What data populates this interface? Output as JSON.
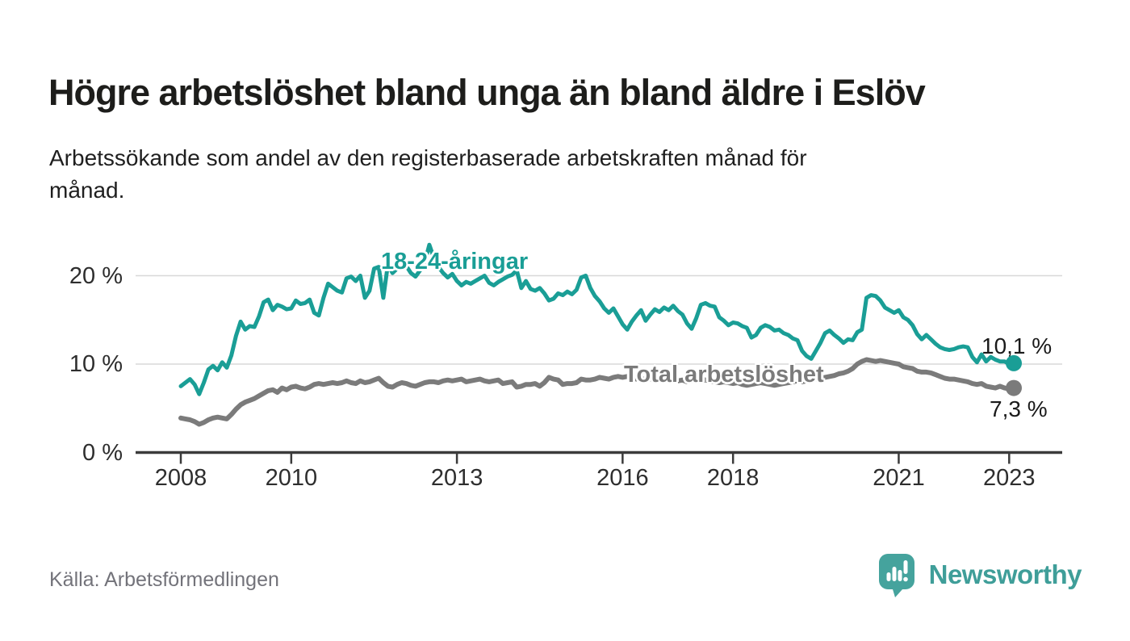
{
  "header": {
    "title": "Högre arbetslöshet bland unga än bland äldre i Eslöv",
    "subtitle": "Arbetssökande som andel av den registerbaserade arbetskraften månad för\nmånad."
  },
  "footer": {
    "source": "Källa: Arbetsförmedlingen",
    "brand": "Newsworthy"
  },
  "colors": {
    "young": "#1a9e96",
    "total": "#7b7b7b",
    "grid": "#d8d8d8",
    "axis": "#3b3b3b",
    "axis_label": "#2e2e2e",
    "value_label": "#1a1a1a",
    "brand_teal": "#45a39d"
  },
  "chart_data": {
    "type": "line",
    "title": "Högre arbetslöshet bland unga än bland äldre i Eslöv",
    "subtitle": "Arbetssökande som andel av den registerbaserade arbetskraften månad för månad.",
    "unit": "%",
    "x_start": "2008-01",
    "x_end": "2023-02",
    "x_frequency": "monthly",
    "grid": "horizontal",
    "legend_position": "inline-annotations",
    "y_axis": {
      "ticks": [
        {
          "value": 0,
          "label": "0 %"
        },
        {
          "value": 10,
          "label": "10 %"
        },
        {
          "value": 20,
          "label": "20 %"
        }
      ],
      "range": [
        0,
        24
      ]
    },
    "x_ticks": [
      {
        "year": 2008,
        "label": "2008"
      },
      {
        "year": 2010,
        "label": "2010"
      },
      {
        "year": 2013,
        "label": "2013"
      },
      {
        "year": 2016,
        "label": "2016"
      },
      {
        "year": 2018,
        "label": "2018"
      },
      {
        "year": 2021,
        "label": "2021"
      },
      {
        "year": 2023,
        "label": "2023"
      }
    ],
    "series": [
      {
        "name": "18-24-åringar",
        "color": "#1a9e96",
        "end_label": "10,1 %",
        "end_value": 10.1,
        "values": [
          7.5,
          7.9,
          8.3,
          7.7,
          6.6,
          7.9,
          9.4,
          9.8,
          9.3,
          10.2,
          9.6,
          11.0,
          13.2,
          14.8,
          13.9,
          14.3,
          14.2,
          15.4,
          17.0,
          17.3,
          16.1,
          16.7,
          16.5,
          16.2,
          16.3,
          17.2,
          16.8,
          16.9,
          17.3,
          15.8,
          15.5,
          17.5,
          19.1,
          18.7,
          18.3,
          18.1,
          19.7,
          19.9,
          19.4,
          20.0,
          17.5,
          18.3,
          20.8,
          21.0,
          17.5,
          21.3,
          20.3,
          20.8,
          20.9,
          21.1,
          20.3,
          19.9,
          20.6,
          21.5,
          23.5,
          22.0,
          21.0,
          20.3,
          19.8,
          20.2,
          19.4,
          18.9,
          19.3,
          19.1,
          19.4,
          19.7,
          20.0,
          19.2,
          18.9,
          19.3,
          19.6,
          19.9,
          20.1,
          20.6,
          18.6,
          19.4,
          18.5,
          18.3,
          18.6,
          18.0,
          17.2,
          17.4,
          18.0,
          17.8,
          18.2,
          17.9,
          18.4,
          19.8,
          20.0,
          18.6,
          17.7,
          17.1,
          16.3,
          15.8,
          16.3,
          15.4,
          14.5,
          13.9,
          14.8,
          15.5,
          16.1,
          14.9,
          15.6,
          16.2,
          15.9,
          16.4,
          16.1,
          16.6,
          16.0,
          15.6,
          14.6,
          14.0,
          15.2,
          16.7,
          16.9,
          16.6,
          16.5,
          15.3,
          14.9,
          14.4,
          14.7,
          14.6,
          14.3,
          14.1,
          13.0,
          13.3,
          14.1,
          14.4,
          14.2,
          13.8,
          13.9,
          13.5,
          13.3,
          12.9,
          12.7,
          11.5,
          10.9,
          10.6,
          11.5,
          12.4,
          13.5,
          13.8,
          13.3,
          12.9,
          12.4,
          12.8,
          12.7,
          13.6,
          13.9,
          17.5,
          17.8,
          17.7,
          17.2,
          16.4,
          16.1,
          15.8,
          16.1,
          15.3,
          15.0,
          14.4,
          13.4,
          12.8,
          13.3,
          12.8,
          12.3,
          11.9,
          11.7,
          11.6,
          11.7,
          11.9,
          12.0,
          11.9,
          10.8,
          10.2,
          11.1,
          10.3,
          10.8,
          10.5,
          10.3,
          10.3,
          10.0,
          10.1
        ]
      },
      {
        "name": "Total arbetslöshet",
        "color": "#7b7b7b",
        "end_label": "7,3 %",
        "end_value": 7.3,
        "values": [
          3.9,
          3.8,
          3.7,
          3.5,
          3.2,
          3.4,
          3.7,
          3.9,
          4.0,
          3.9,
          3.8,
          4.3,
          4.9,
          5.4,
          5.7,
          5.9,
          6.1,
          6.4,
          6.7,
          7.0,
          7.1,
          6.8,
          7.3,
          7.1,
          7.4,
          7.5,
          7.3,
          7.2,
          7.4,
          7.7,
          7.8,
          7.7,
          7.8,
          7.9,
          7.8,
          7.9,
          8.1,
          7.9,
          7.8,
          8.1,
          7.9,
          8.0,
          8.2,
          8.4,
          7.9,
          7.5,
          7.4,
          7.7,
          7.9,
          7.8,
          7.6,
          7.5,
          7.7,
          7.9,
          8.0,
          8.0,
          7.9,
          8.1,
          8.2,
          8.1,
          8.2,
          8.3,
          8.0,
          8.1,
          8.2,
          8.3,
          8.1,
          8.0,
          8.1,
          8.2,
          7.8,
          7.9,
          8.0,
          7.4,
          7.5,
          7.7,
          7.7,
          7.8,
          7.5,
          7.9,
          8.5,
          8.3,
          8.2,
          7.7,
          7.8,
          7.8,
          7.9,
          8.3,
          8.2,
          8.2,
          8.3,
          8.5,
          8.4,
          8.3,
          8.5,
          8.6,
          8.5,
          8.6,
          8.4,
          8.3,
          8.4,
          8.2,
          8.3,
          8.4,
          8.3,
          8.2,
          8.3,
          8.2,
          8.1,
          8.2,
          8.0,
          8.1,
          8.2,
          8.3,
          8.2,
          8.1,
          8.0,
          7.9,
          8.0,
          7.9,
          7.8,
          7.9,
          7.7,
          7.6,
          7.7,
          7.8,
          7.9,
          7.8,
          7.7,
          7.6,
          7.7,
          7.8,
          7.9,
          8.0,
          8.1,
          8.0,
          8.1,
          8.2,
          8.3,
          8.4,
          8.5,
          8.6,
          8.7,
          8.9,
          9.0,
          9.2,
          9.5,
          10.0,
          10.3,
          10.5,
          10.4,
          10.3,
          10.4,
          10.3,
          10.2,
          10.1,
          10.0,
          9.7,
          9.6,
          9.5,
          9.2,
          9.1,
          9.1,
          9.0,
          8.8,
          8.6,
          8.4,
          8.3,
          8.3,
          8.2,
          8.1,
          8.0,
          7.8,
          7.7,
          7.8,
          7.5,
          7.4,
          7.3,
          7.5,
          7.3,
          7.2,
          7.3
        ]
      }
    ]
  }
}
